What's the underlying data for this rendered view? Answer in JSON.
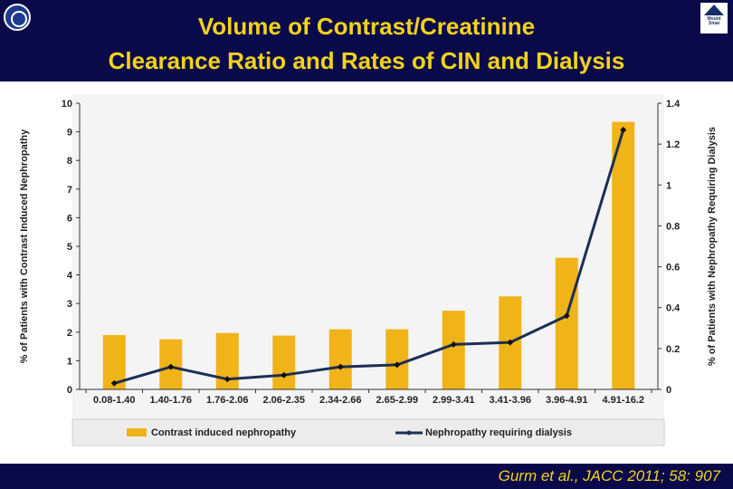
{
  "header": {
    "title_line1": "Volume of Contrast/Creatinine",
    "title_line2": "Clearance Ratio and Rates of CIN and Dialysis"
  },
  "logos": {
    "left_icon": "institution-seal-icon",
    "right_icon": "mount-sinai-logo-icon",
    "right_text": "Mount Sinai"
  },
  "footer": {
    "citation": "Gurm et al., JACC 2011; 58: 907"
  },
  "colors": {
    "header_bg": "#0a0a4a",
    "title": "#f2d21b",
    "bar": "#f0b419",
    "line": "#1b2f55"
  },
  "chart_data": {
    "type": "bar",
    "categories": [
      "0.08-1.40",
      "1.40-1.76",
      "1.76-2.06",
      "2.06-2.35",
      "2.34-2.66",
      "2.65-2.99",
      "2.99-3.41",
      "3.41-3.96",
      "3.96-4.91",
      "4.91-16.2"
    ],
    "series": [
      {
        "name": "Contrast induced nephropathy",
        "type": "bar",
        "axis": "left",
        "values": [
          1.9,
          1.75,
          1.97,
          1.88,
          2.1,
          2.1,
          2.75,
          3.25,
          4.6,
          9.35
        ]
      },
      {
        "name": "Nephropathy requiring dialysis",
        "type": "line",
        "axis": "right",
        "values": [
          0.03,
          0.11,
          0.05,
          0.07,
          0.11,
          0.12,
          0.22,
          0.23,
          0.36,
          1.27
        ]
      }
    ],
    "ylabel": "% of Patients with Contrast Induced Nephropathy",
    "y2label": "% of Patients with Nephropathy Requiring Dialysis",
    "ylim": [
      0,
      10
    ],
    "y2lim": [
      0,
      1.4
    ],
    "yticks": [
      "0",
      "1",
      "2",
      "3",
      "4",
      "5",
      "6",
      "7",
      "8",
      "9",
      "10"
    ],
    "y2ticks": [
      "0",
      "0.2",
      "0.4",
      "0.6",
      "0.8",
      "1",
      "1.2",
      "1.4"
    ],
    "grid": false,
    "legend_position": "bottom"
  }
}
